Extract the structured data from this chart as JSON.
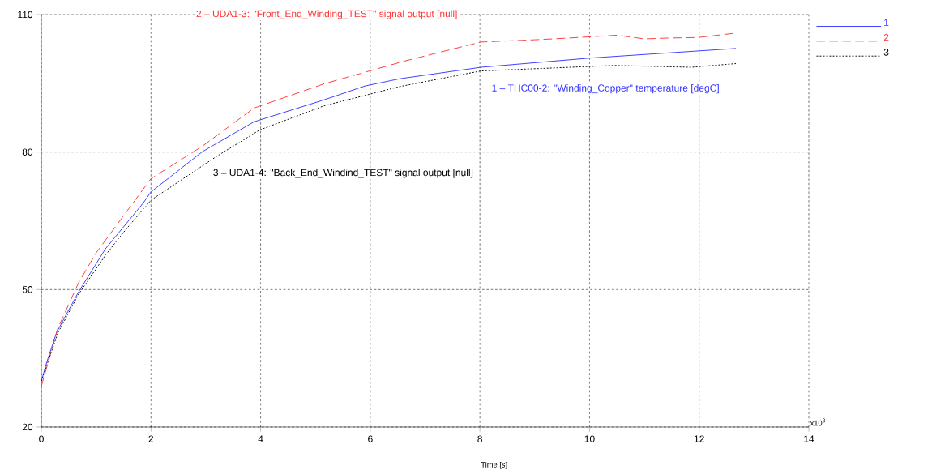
{
  "chart_data": {
    "type": "line",
    "xlabel": "Time [s]",
    "xlim": [
      0,
      14
    ],
    "ylim": [
      20,
      110
    ],
    "xticks": [
      0,
      2,
      4,
      6,
      8,
      10,
      12,
      14
    ],
    "yticks": [
      20,
      50,
      80,
      110
    ],
    "grid": true,
    "legend": "top right",
    "marker": "none",
    "annotations": [
      "2 – UDA1-3: \"Front_End_Winding_TEST\" signal output [null]",
      "1 – THC00-2: \"Winding_Copper\" temperature [degC]",
      "3 – UDA1-4: \"Back_End_Windind_TEST\" signal output [null]",
      "x10$^{3}$"
    ],
    "series": [
      {
        "name": "1",
        "color": "#3333ff",
        "line_style": "solid",
        "x": [
          0,
          0.1,
          0.28,
          0.68,
          1.17,
          1.86,
          2.0,
          2.94,
          3.88,
          5.16,
          5.9,
          6.54,
          8.02,
          10.0,
          12.67
        ],
        "values": [
          30,
          34.2,
          40.7,
          49.5,
          58.9,
          68.9,
          71.3,
          80.1,
          86.6,
          91.4,
          94.4,
          96.0,
          98.5,
          100.5,
          102.6
        ]
      },
      {
        "name": "2",
        "color": "#ff3333",
        "line_style": "dashed",
        "x": [
          0,
          0.3,
          0.68,
          1.0,
          2.0,
          2.94,
          3.88,
          5.16,
          6.64,
          8.02,
          9.0,
          9.5,
          10.5,
          11.0,
          11.5,
          11.98,
          12.63
        ],
        "values": [
          28.9,
          41.5,
          51.5,
          58.0,
          74.2,
          81.3,
          89.6,
          94.9,
          99.9,
          104.0,
          104.5,
          104.8,
          105.5,
          104.7,
          104.9,
          105.0,
          105.9
        ]
      },
      {
        "name": "3",
        "color": "#000000",
        "line_style": "dotted",
        "x": [
          0,
          0.3,
          0.68,
          1.17,
          1.5,
          2.0,
          3.19,
          3.98,
          5.16,
          6.54,
          8.02,
          10.46,
          11.85,
          12.67
        ],
        "values": [
          30,
          40.5,
          49,
          57.5,
          62.5,
          69.5,
          79.0,
          84.8,
          90.1,
          94.3,
          97.7,
          98.9,
          98.5,
          99.3
        ]
      }
    ]
  }
}
